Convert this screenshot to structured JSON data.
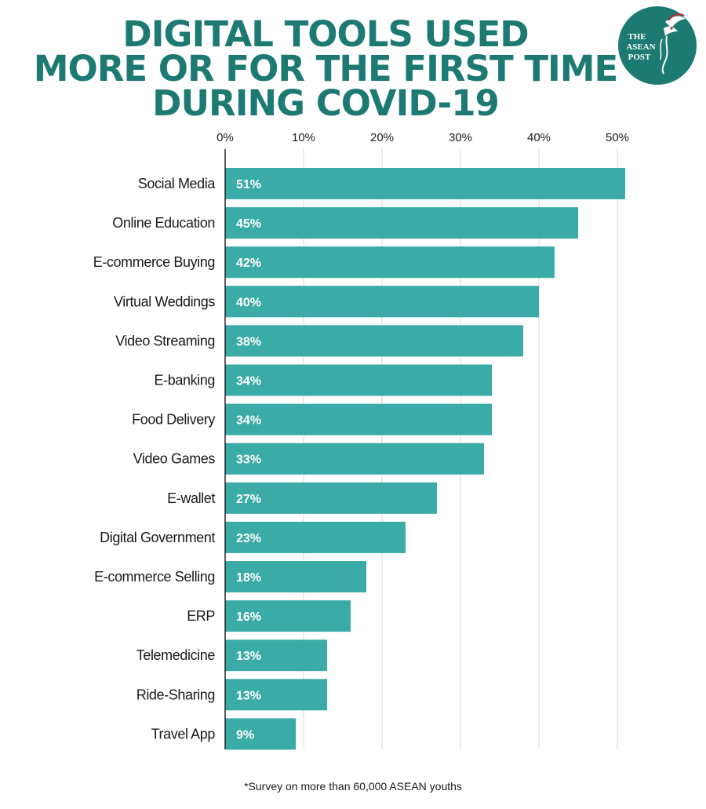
{
  "title_lines": [
    "DIGITAL TOOLS USED",
    "MORE OR FOR THE FIRST TIME",
    "DURING COVID-19"
  ],
  "logo": {
    "lines": [
      "THE",
      "ASEAN",
      "POST"
    ],
    "color": "#1c7a72",
    "icon": "hummingbird-icon"
  },
  "footnote": "*Survey on more than 60,000 ASEAN youths",
  "colors": {
    "bar": "#3aaba6",
    "title": "#1c7a72",
    "grid": "#d9d9d9",
    "axis": "#1a1a1a",
    "value_label": "#ffffff",
    "category_label": "#1a1a1a"
  },
  "chart_data": {
    "type": "bar",
    "orientation": "horizontal",
    "title": "DIGITAL TOOLS USED MORE OR FOR THE FIRST TIME DURING COVID-19",
    "xlabel": "",
    "ylabel": "",
    "xlim": [
      0,
      52
    ],
    "x_ticks": [
      0,
      10,
      20,
      30,
      40,
      50
    ],
    "x_tick_labels": [
      "0%",
      "10%",
      "20%",
      "30%",
      "40%",
      "50%"
    ],
    "tick_position": "top",
    "grid": true,
    "legend": "none",
    "categories": [
      "Social Media",
      "Online Education",
      "E-commerce Buying",
      "Virtual Weddings",
      "Video Streaming",
      "E-banking",
      "Food Delivery",
      "Video Games",
      "E-wallet",
      "Digital Government",
      "E-commerce Selling",
      "ERP",
      "Telemedicine",
      "Ride-Sharing",
      "Travel App"
    ],
    "values": [
      51,
      45,
      42,
      40,
      38,
      34,
      34,
      33,
      27,
      23,
      18,
      16,
      13,
      13,
      9
    ],
    "value_labels": [
      "51%",
      "45%",
      "42%",
      "40%",
      "38%",
      "34%",
      "34%",
      "33%",
      "27%",
      "23%",
      "18%",
      "16%",
      "13%",
      "13%",
      "9%"
    ]
  }
}
